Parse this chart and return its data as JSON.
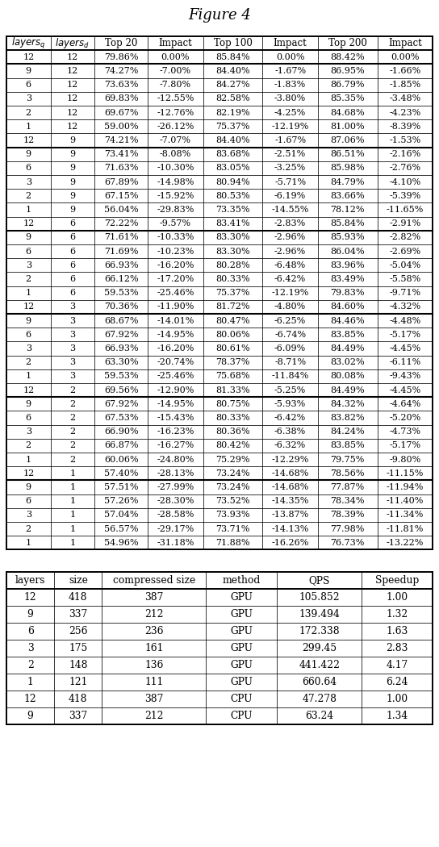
{
  "title": "Figure 4",
  "table1_headers": [
    "layers_q",
    "layers_d",
    "Top 20",
    "Impact",
    "Top 100",
    "Impact",
    "Top 200",
    "Impact"
  ],
  "table1_header_italic": [
    true,
    true,
    false,
    false,
    false,
    false,
    false,
    false
  ],
  "table1_data": [
    [
      "12",
      "12",
      "79.86%",
      "0.00%",
      "85.84%",
      "0.00%",
      "88.42%",
      "0.00%"
    ],
    [
      "9",
      "12",
      "74.27%",
      "-7.00%",
      "84.40%",
      "-1.67%",
      "86.95%",
      "-1.66%"
    ],
    [
      "6",
      "12",
      "73.63%",
      "-7.80%",
      "84.27%",
      "-1.83%",
      "86.79%",
      "-1.85%"
    ],
    [
      "3",
      "12",
      "69.83%",
      "-12.55%",
      "82.58%",
      "-3.80%",
      "85.35%",
      "-3.48%"
    ],
    [
      "2",
      "12",
      "69.67%",
      "-12.76%",
      "82.19%",
      "-4.25%",
      "84.68%",
      "-4.23%"
    ],
    [
      "1",
      "12",
      "59.00%",
      "-26.12%",
      "75.37%",
      "-12.19%",
      "81.00%",
      "-8.39%"
    ],
    [
      "12",
      "9",
      "74.21%",
      "-7.07%",
      "84.40%",
      "-1.67%",
      "87.06%",
      "-1.53%"
    ],
    [
      "9",
      "9",
      "73.41%",
      "-8.08%",
      "83.68%",
      "-2.51%",
      "86.51%",
      "-2.16%"
    ],
    [
      "6",
      "9",
      "71.63%",
      "-10.30%",
      "83.05%",
      "-3.25%",
      "85.98%",
      "-2.76%"
    ],
    [
      "3",
      "9",
      "67.89%",
      "-14.98%",
      "80.94%",
      "-5.71%",
      "84.79%",
      "-4.10%"
    ],
    [
      "2",
      "9",
      "67.15%",
      "-15.92%",
      "80.53%",
      "-6.19%",
      "83.66%",
      "-5.39%"
    ],
    [
      "1",
      "9",
      "56.04%",
      "-29.83%",
      "73.35%",
      "-14.55%",
      "78.12%",
      "-11.65%"
    ],
    [
      "12",
      "6",
      "72.22%",
      "-9.57%",
      "83.41%",
      "-2.83%",
      "85.84%",
      "-2.91%"
    ],
    [
      "9",
      "6",
      "71.61%",
      "-10.33%",
      "83.30%",
      "-2.96%",
      "85.93%",
      "-2.82%"
    ],
    [
      "6",
      "6",
      "71.69%",
      "-10.23%",
      "83.30%",
      "-2.96%",
      "86.04%",
      "-2.69%"
    ],
    [
      "3",
      "6",
      "66.93%",
      "-16.20%",
      "80.28%",
      "-6.48%",
      "83.96%",
      "-5.04%"
    ],
    [
      "2",
      "6",
      "66.12%",
      "-17.20%",
      "80.33%",
      "-6.42%",
      "83.49%",
      "-5.58%"
    ],
    [
      "1",
      "6",
      "59.53%",
      "-25.46%",
      "75.37%",
      "-12.19%",
      "79.83%",
      "-9.71%"
    ],
    [
      "12",
      "3",
      "70.36%",
      "-11.90%",
      "81.72%",
      "-4.80%",
      "84.60%",
      "-4.32%"
    ],
    [
      "9",
      "3",
      "68.67%",
      "-14.01%",
      "80.47%",
      "-6.25%",
      "84.46%",
      "-4.48%"
    ],
    [
      "6",
      "3",
      "67.92%",
      "-14.95%",
      "80.06%",
      "-6.74%",
      "83.85%",
      "-5.17%"
    ],
    [
      "3",
      "3",
      "66.93%",
      "-16.20%",
      "80.61%",
      "-6.09%",
      "84.49%",
      "-4.45%"
    ],
    [
      "2",
      "3",
      "63.30%",
      "-20.74%",
      "78.37%",
      "-8.71%",
      "83.02%",
      "-6.11%"
    ],
    [
      "1",
      "3",
      "59.53%",
      "-25.46%",
      "75.68%",
      "-11.84%",
      "80.08%",
      "-9.43%"
    ],
    [
      "12",
      "2",
      "69.56%",
      "-12.90%",
      "81.33%",
      "-5.25%",
      "84.49%",
      "-4.45%"
    ],
    [
      "9",
      "2",
      "67.92%",
      "-14.95%",
      "80.75%",
      "-5.93%",
      "84.32%",
      "-4.64%"
    ],
    [
      "6",
      "2",
      "67.53%",
      "-15.43%",
      "80.33%",
      "-6.42%",
      "83.82%",
      "-5.20%"
    ],
    [
      "3",
      "2",
      "66.90%",
      "-16.23%",
      "80.36%",
      "-6.38%",
      "84.24%",
      "-4.73%"
    ],
    [
      "2",
      "2",
      "66.87%",
      "-16.27%",
      "80.42%",
      "-6.32%",
      "83.85%",
      "-5.17%"
    ],
    [
      "1",
      "2",
      "60.06%",
      "-24.80%",
      "75.29%",
      "-12.29%",
      "79.75%",
      "-9.80%"
    ],
    [
      "12",
      "1",
      "57.40%",
      "-28.13%",
      "73.24%",
      "-14.68%",
      "78.56%",
      "-11.15%"
    ],
    [
      "9",
      "1",
      "57.51%",
      "-27.99%",
      "73.24%",
      "-14.68%",
      "77.87%",
      "-11.94%"
    ],
    [
      "6",
      "1",
      "57.26%",
      "-28.30%",
      "73.52%",
      "-14.35%",
      "78.34%",
      "-11.40%"
    ],
    [
      "3",
      "1",
      "57.04%",
      "-28.58%",
      "73.93%",
      "-13.87%",
      "78.39%",
      "-11.34%"
    ],
    [
      "2",
      "1",
      "56.57%",
      "-29.17%",
      "73.71%",
      "-14.13%",
      "77.98%",
      "-11.81%"
    ],
    [
      "1",
      "1",
      "54.96%",
      "-31.18%",
      "71.88%",
      "-16.26%",
      "76.73%",
      "-13.22%"
    ]
  ],
  "table1_thick_after_rows": [
    0,
    6,
    12,
    18,
    24,
    30
  ],
  "table2_headers": [
    "layers",
    "size",
    "compressed size",
    "method",
    "QPS",
    "Speedup"
  ],
  "table2_data": [
    [
      "12",
      "418",
      "387",
      "GPU",
      "105.852",
      "1.00"
    ],
    [
      "9",
      "337",
      "212",
      "GPU",
      "139.494",
      "1.32"
    ],
    [
      "6",
      "256",
      "236",
      "GPU",
      "172.338",
      "1.63"
    ],
    [
      "3",
      "175",
      "161",
      "GPU",
      "299.45",
      "2.83"
    ],
    [
      "2",
      "148",
      "136",
      "GPU",
      "441.422",
      "4.17"
    ],
    [
      "1",
      "121",
      "111",
      "GPU",
      "660.64",
      "6.24"
    ],
    [
      "12",
      "418",
      "387",
      "CPU",
      "47.278",
      "1.00"
    ],
    [
      "9",
      "337",
      "212",
      "CPU",
      "63.24",
      "1.34"
    ]
  ],
  "bg_color": "#ffffff",
  "text_color": "#000000"
}
